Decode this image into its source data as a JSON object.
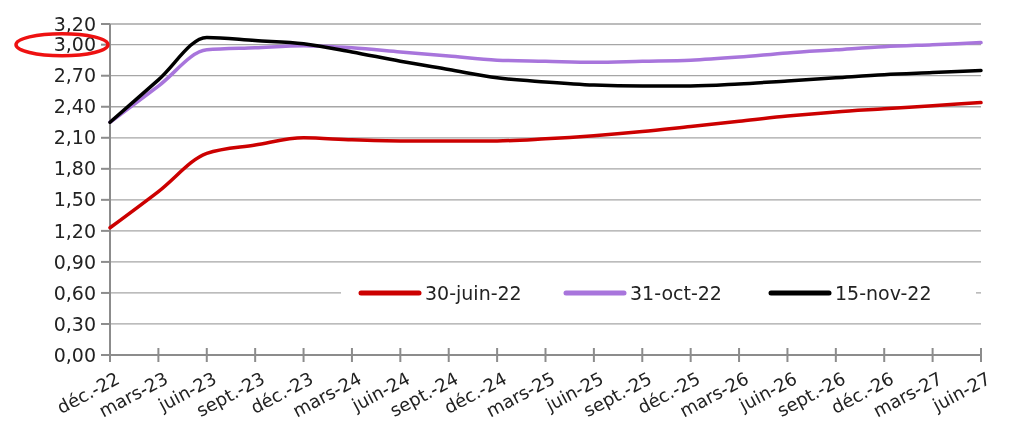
{
  "chart_data": {
    "type": "line",
    "categories": [
      "déc.-22",
      "mars-23",
      "juin-23",
      "sept.-23",
      "déc.-23",
      "mars-24",
      "juin-24",
      "sept.-24",
      "déc.-24",
      "mars-25",
      "juin-25",
      "sept.-25",
      "déc.-25",
      "mars-26",
      "juin-26",
      "sept.-26",
      "déc.-26",
      "mars-27",
      "juin-27"
    ],
    "series": [
      {
        "name": "30-juin-22",
        "color": "#cc0000",
        "values": [
          1.23,
          1.58,
          1.95,
          2.03,
          2.1,
          2.08,
          2.07,
          2.07,
          2.07,
          2.09,
          2.12,
          2.16,
          2.21,
          2.26,
          2.31,
          2.35,
          2.38,
          2.41,
          2.44
        ]
      },
      {
        "name": "31-oct-22",
        "color": "#a875dc",
        "values": [
          2.25,
          2.6,
          2.95,
          2.97,
          2.99,
          2.97,
          2.93,
          2.89,
          2.85,
          2.84,
          2.83,
          2.84,
          2.85,
          2.88,
          2.92,
          2.95,
          2.98,
          3.0,
          3.02
        ]
      },
      {
        "name": "15-nov-22",
        "color": "#000000",
        "values": [
          2.25,
          2.66,
          3.07,
          3.04,
          3.01,
          2.93,
          2.84,
          2.76,
          2.68,
          2.64,
          2.61,
          2.6,
          2.6,
          2.62,
          2.65,
          2.68,
          2.71,
          2.73,
          2.75
        ]
      }
    ],
    "ylim": [
      0,
      3.2
    ],
    "yticks": [
      {
        "value": 0,
        "label": "0,00"
      },
      {
        "value": 0.3,
        "label": "0,30"
      },
      {
        "value": 0.6,
        "label": "0,60"
      },
      {
        "value": 0.9,
        "label": "0,90"
      },
      {
        "value": 1.2,
        "label": "1,20"
      },
      {
        "value": 1.5,
        "label": "1,50"
      },
      {
        "value": 1.8,
        "label": "1,80"
      },
      {
        "value": 2.1,
        "label": "2,10"
      },
      {
        "value": 2.4,
        "label": "2,40"
      },
      {
        "value": 2.7,
        "label": "2,70"
      },
      {
        "value": 3.0,
        "label": "3,00"
      },
      {
        "value": 3.2,
        "label": "3,20"
      }
    ],
    "grid": "y",
    "legend": "bottom right",
    "marker": "none",
    "line_style": "solid"
  }
}
